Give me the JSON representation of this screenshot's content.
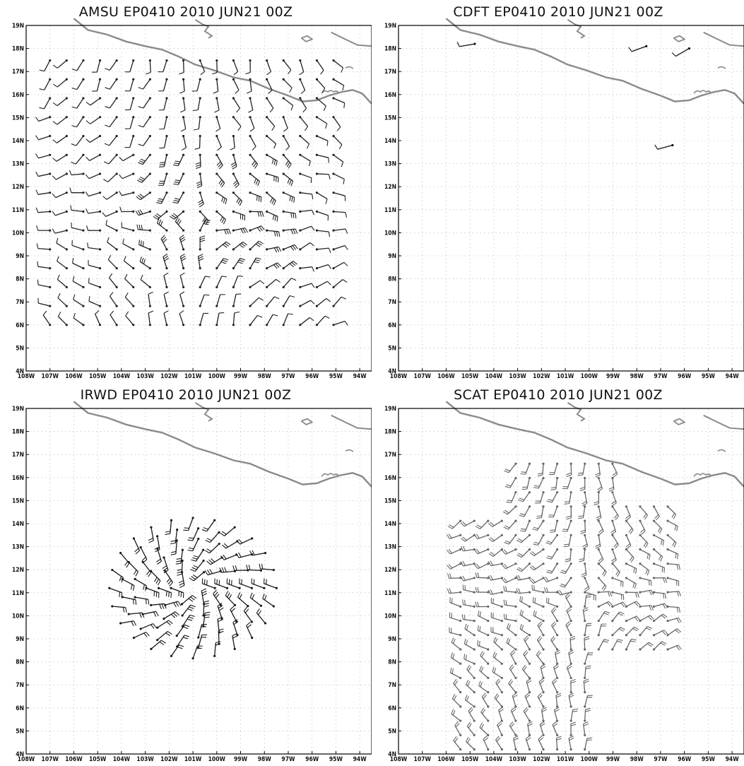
{
  "panels": [
    {
      "id": "amsu",
      "title": "AMSU EP0410 2010 JUN21 00Z",
      "wind_color": "#222222",
      "wind_pattern": "full-grid",
      "extra_barbs": []
    },
    {
      "id": "cdft",
      "title": "CDFT EP0410 2010 JUN21 00Z",
      "wind_color": "#111111",
      "wind_pattern": "sparse",
      "extra_barbs": [
        {
          "lon": -104.8,
          "lat": 18.2,
          "dir": 260
        },
        {
          "lon": -97.6,
          "lat": 18.1,
          "dir": 250
        },
        {
          "lon": -95.8,
          "lat": 18.0,
          "dir": 240
        },
        {
          "lon": -96.5,
          "lat": 13.8,
          "dir": 255
        }
      ]
    },
    {
      "id": "irwd",
      "title": "IRWD EP0410 2010 JUN21 00Z",
      "wind_color": "#1a1a1a",
      "wind_pattern": "vortex",
      "extra_barbs": []
    },
    {
      "id": "scat",
      "title": "SCAT EP0410 2010 JUN21 00Z",
      "wind_color": "#666666",
      "wind_pattern": "scat",
      "extra_barbs": []
    }
  ],
  "axes": {
    "lat_labels": [
      "4N",
      "5N",
      "6N",
      "7N",
      "8N",
      "9N",
      "10N",
      "11N",
      "12N",
      "13N",
      "14N",
      "15N",
      "16N",
      "17N",
      "18N",
      "19N"
    ],
    "lon_labels": [
      "108W",
      "107W",
      "106W",
      "105W",
      "104W",
      "103W",
      "102W",
      "101W",
      "100W",
      "99W",
      "98W",
      "97W",
      "96W",
      "95W",
      "94W"
    ],
    "lat_range": [
      4,
      19
    ],
    "lon_range": [
      -108,
      -93.5
    ]
  },
  "colors": {
    "coastline": "#8a8a8a",
    "gridline": "#b0b0b0",
    "frame": "#000000"
  }
}
